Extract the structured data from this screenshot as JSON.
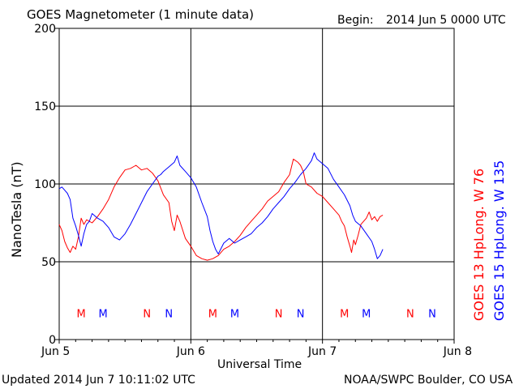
{
  "header": {
    "title": "GOES Magnetometer (1 minute data)",
    "begin_label": "Begin:",
    "begin_value": "2014 Jun 5 0000 UTC"
  },
  "footer": {
    "updated": "Updated 2014 Jun  7 10:11:02 UTC",
    "credit": "NOAA/SWPC Boulder, CO USA"
  },
  "colors": {
    "goes13": "#ff0000",
    "goes15": "#0000ff",
    "grid": "#000000"
  },
  "chart_data": {
    "type": "line",
    "title": "GOES Magnetometer (1 minute data)",
    "xlabel": "Universal Time",
    "ylabel": "NanoTesla (nT)",
    "x_unit": "hours since 2014 Jun 5 0000 UTC",
    "xlim": [
      0,
      72
    ],
    "ylim": [
      0,
      200
    ],
    "y_ticks": [
      0,
      50,
      100,
      150,
      200
    ],
    "x_ticks": [
      {
        "x": 0,
        "label": "Jun 5"
      },
      {
        "x": 24,
        "label": "Jun 6"
      },
      {
        "x": 48,
        "label": "Jun 7"
      },
      {
        "x": 72,
        "label": "Jun 8"
      }
    ],
    "grid": true,
    "series": [
      {
        "name": "GOES 13 Hp",
        "longitude_label": "Long. W 76",
        "color": "#ff0000",
        "points": [
          [
            0.0,
            74
          ],
          [
            0.5,
            70
          ],
          [
            1.0,
            63
          ],
          [
            1.5,
            59
          ],
          [
            2.0,
            56
          ],
          [
            2.5,
            60
          ],
          [
            3.0,
            58
          ],
          [
            3.5,
            66
          ],
          [
            4.0,
            78
          ],
          [
            4.5,
            74
          ],
          [
            5.0,
            77
          ],
          [
            6.0,
            75
          ],
          [
            7.0,
            79
          ],
          [
            8.0,
            84
          ],
          [
            9.0,
            90
          ],
          [
            10.0,
            98
          ],
          [
            11.0,
            104
          ],
          [
            12.0,
            109
          ],
          [
            13.0,
            110
          ],
          [
            14.0,
            112
          ],
          [
            15.0,
            109
          ],
          [
            16.0,
            110
          ],
          [
            17.0,
            107
          ],
          [
            18.0,
            102
          ],
          [
            19.0,
            93
          ],
          [
            20.0,
            88
          ],
          [
            20.5,
            76
          ],
          [
            21.0,
            70
          ],
          [
            21.5,
            80
          ],
          [
            22.0,
            76
          ],
          [
            23.0,
            65
          ],
          [
            24.0,
            60
          ],
          [
            25.0,
            54
          ],
          [
            26.0,
            52
          ],
          [
            27.0,
            51
          ],
          [
            28.0,
            52
          ],
          [
            29.0,
            54
          ],
          [
            30.0,
            58
          ],
          [
            31.0,
            60
          ],
          [
            32.0,
            63
          ],
          [
            33.0,
            67
          ],
          [
            34.0,
            72
          ],
          [
            35.0,
            76
          ],
          [
            36.0,
            80
          ],
          [
            37.0,
            84
          ],
          [
            38.0,
            89
          ],
          [
            39.0,
            92
          ],
          [
            40.0,
            95
          ],
          [
            41.0,
            101
          ],
          [
            42.0,
            106
          ],
          [
            42.7,
            116
          ],
          [
            43.5,
            114
          ],
          [
            44.0,
            112
          ],
          [
            44.5,
            108
          ],
          [
            45.0,
            100
          ],
          [
            46.0,
            98
          ],
          [
            47.0,
            94
          ],
          [
            48.0,
            92
          ],
          [
            49.0,
            88
          ],
          [
            50.0,
            84
          ],
          [
            51.0,
            80
          ],
          [
            51.5,
            76
          ],
          [
            52.0,
            73
          ],
          [
            52.5,
            66
          ],
          [
            53.0,
            60
          ],
          [
            53.3,
            56
          ],
          [
            53.7,
            64
          ],
          [
            54.0,
            61
          ],
          [
            54.5,
            67
          ],
          [
            55.0,
            74
          ],
          [
            55.5,
            76
          ],
          [
            56.0,
            78
          ],
          [
            56.5,
            82
          ],
          [
            57.0,
            77
          ],
          [
            57.5,
            79
          ],
          [
            58.0,
            76
          ],
          [
            58.5,
            79
          ],
          [
            59.0,
            80
          ]
        ]
      },
      {
        "name": "GOES 15 Hp",
        "longitude_label": "Long. W 135",
        "color": "#0000ff",
        "points": [
          [
            0.0,
            97
          ],
          [
            0.5,
            98
          ],
          [
            1.0,
            96
          ],
          [
            1.5,
            94
          ],
          [
            2.0,
            90
          ],
          [
            2.5,
            78
          ],
          [
            3.0,
            73
          ],
          [
            3.5,
            67
          ],
          [
            4.0,
            60
          ],
          [
            4.5,
            68
          ],
          [
            5.0,
            74
          ],
          [
            5.5,
            76
          ],
          [
            6.0,
            81
          ],
          [
            7.0,
            78
          ],
          [
            8.0,
            76
          ],
          [
            9.0,
            72
          ],
          [
            10.0,
            66
          ],
          [
            11.0,
            64
          ],
          [
            12.0,
            68
          ],
          [
            13.0,
            74
          ],
          [
            14.0,
            81
          ],
          [
            15.0,
            88
          ],
          [
            16.0,
            95
          ],
          [
            17.0,
            100
          ],
          [
            18.0,
            105
          ],
          [
            18.5,
            106
          ],
          [
            19.0,
            108
          ],
          [
            20.0,
            111
          ],
          [
            21.0,
            114
          ],
          [
            21.5,
            118
          ],
          [
            22.0,
            112
          ],
          [
            23.0,
            108
          ],
          [
            24.0,
            104
          ],
          [
            25.0,
            98
          ],
          [
            26.0,
            88
          ],
          [
            27.0,
            79
          ],
          [
            27.5,
            70
          ],
          [
            28.0,
            63
          ],
          [
            28.5,
            58
          ],
          [
            29.0,
            55
          ],
          [
            30.0,
            62
          ],
          [
            31.0,
            65
          ],
          [
            32.0,
            62
          ],
          [
            33.0,
            64
          ],
          [
            34.0,
            66
          ],
          [
            35.0,
            68
          ],
          [
            36.0,
            72
          ],
          [
            37.0,
            75
          ],
          [
            38.0,
            79
          ],
          [
            39.0,
            84
          ],
          [
            40.0,
            88
          ],
          [
            41.0,
            92
          ],
          [
            42.0,
            97
          ],
          [
            43.0,
            101
          ],
          [
            44.0,
            106
          ],
          [
            45.0,
            110
          ],
          [
            46.0,
            115
          ],
          [
            46.5,
            120
          ],
          [
            47.0,
            116
          ],
          [
            48.0,
            113
          ],
          [
            49.0,
            110
          ],
          [
            50.0,
            103
          ],
          [
            51.0,
            98
          ],
          [
            52.0,
            93
          ],
          [
            53.0,
            86
          ],
          [
            53.5,
            80
          ],
          [
            54.0,
            76
          ],
          [
            55.0,
            73
          ],
          [
            56.0,
            68
          ],
          [
            57.0,
            63
          ],
          [
            57.5,
            58
          ],
          [
            58.0,
            52
          ],
          [
            58.5,
            54
          ],
          [
            59.0,
            58
          ]
        ]
      }
    ],
    "event_markers": [
      {
        "x": 4,
        "label": "M",
        "series": "GOES 13 Hp"
      },
      {
        "x": 8,
        "label": "M",
        "series": "GOES 15 Hp"
      },
      {
        "x": 16,
        "label": "N",
        "series": "GOES 13 Hp"
      },
      {
        "x": 20,
        "label": "N",
        "series": "GOES 15 Hp"
      },
      {
        "x": 28,
        "label": "M",
        "series": "GOES 13 Hp"
      },
      {
        "x": 32,
        "label": "M",
        "series": "GOES 15 Hp"
      },
      {
        "x": 40,
        "label": "N",
        "series": "GOES 13 Hp"
      },
      {
        "x": 44,
        "label": "N",
        "series": "GOES 15 Hp"
      },
      {
        "x": 52,
        "label": "M",
        "series": "GOES 13 Hp"
      },
      {
        "x": 56,
        "label": "M",
        "series": "GOES 15 Hp"
      },
      {
        "x": 64,
        "label": "N",
        "series": "GOES 13 Hp"
      },
      {
        "x": 68,
        "label": "N",
        "series": "GOES 15 Hp"
      }
    ],
    "marker_level": 17
  }
}
